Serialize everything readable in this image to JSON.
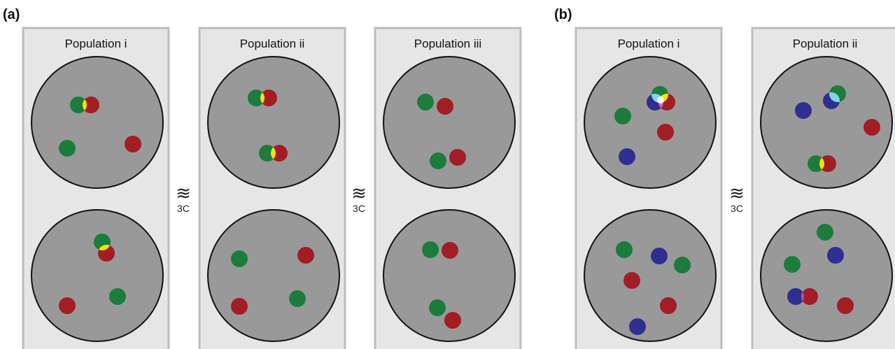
{
  "panel_labels": [
    "(a)",
    "(b)"
  ],
  "panels": [
    {
      "title": "Population i"
    },
    {
      "title": "Population ii"
    },
    {
      "title": "Population iii"
    },
    {
      "title": "Population i"
    },
    {
      "title": "Population ii"
    }
  ],
  "separators": [
    {
      "symbol": "≋",
      "label": "3C"
    },
    {
      "symbol": "≋",
      "label": "3C"
    },
    {
      "symbol": "≋",
      "label": "3C"
    }
  ]
}
